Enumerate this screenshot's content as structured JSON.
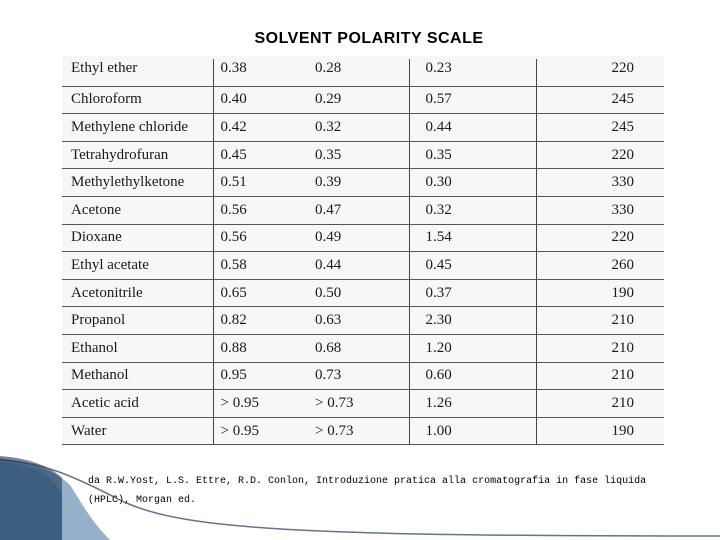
{
  "title": "SOLVENT POLARITY SCALE",
  "table": {
    "rows": [
      [
        "Ethyl ether",
        "0.38",
        "0.28",
        "0.23",
        "220"
      ],
      [
        "Chloroform",
        "0.40",
        "0.29",
        "0.57",
        "245"
      ],
      [
        "Methylene chloride",
        "0.42",
        "0.32",
        "0.44",
        "245"
      ],
      [
        "Tetrahydrofuran",
        "0.45",
        "0.35",
        "0.35",
        "220"
      ],
      [
        "Methylethylketone",
        "0.51",
        "0.39",
        "0.30",
        "330"
      ],
      [
        "Acetone",
        "0.56",
        "0.47",
        "0.32",
        "330"
      ],
      [
        "Dioxane",
        "0.56",
        "0.49",
        "1.54",
        "220"
      ],
      [
        "Ethyl acetate",
        "0.58",
        "0.44",
        "0.45",
        "260"
      ],
      [
        "Acetonitrile",
        "0.65",
        "0.50",
        "0.37",
        "190"
      ],
      [
        "Propanol",
        "0.82",
        "0.63",
        "2.30",
        "210"
      ],
      [
        "Ethanol",
        "0.88",
        "0.68",
        "1.20",
        "210"
      ],
      [
        "Methanol",
        "0.95",
        "0.73",
        "0.60",
        "210"
      ],
      [
        "Acetic acid",
        "> 0.95",
        "> 0.73",
        "1.26",
        "210"
      ],
      [
        "Water",
        "> 0.95",
        "> 0.73",
        "1.00",
        "190"
      ]
    ]
  },
  "citation": "da R.W.Yost, L.S. Ettre, R.D. Conlon, Introduzione pratica alla cromatografia in fase liquida (HPLC), Morgan ed.",
  "colors": {
    "wave_dark": "#1f3a5c",
    "wave_mid": "#3e6f9a",
    "wave_light": "#9cc3e0",
    "scan_bg": "#f7f7f5"
  }
}
